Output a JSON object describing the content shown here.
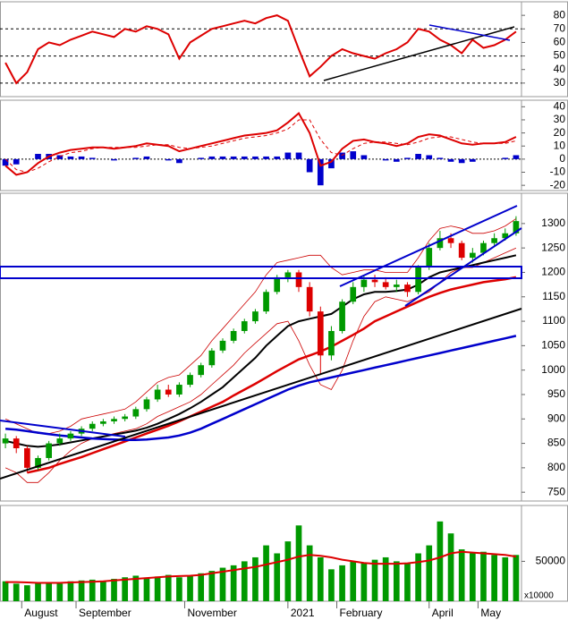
{
  "chart_data": [
    {
      "type": "line",
      "xlim": [
        0,
        48
      ],
      "ylim": [
        20,
        90
      ],
      "yticks": [
        30,
        40,
        50,
        60,
        70,
        80
      ],
      "reference_lines": [
        30,
        50,
        70
      ],
      "series": [
        {
          "color": "#dd0000",
          "values": [
            45,
            30,
            38,
            55,
            60,
            58,
            62,
            65,
            68,
            66,
            64,
            70,
            68,
            72,
            70,
            66,
            48,
            60,
            65,
            70,
            72,
            74,
            76,
            74,
            78,
            80,
            76,
            55,
            35,
            42,
            50,
            55,
            52,
            50,
            48,
            52,
            55,
            60,
            70,
            68,
            62,
            58,
            52,
            62,
            56,
            58,
            62,
            68
          ]
        }
      ]
    },
    {
      "type": "macd",
      "xlim": [
        0,
        48
      ],
      "ylim": [
        -24,
        45
      ],
      "yticks": [
        -20,
        -10,
        0,
        10,
        20,
        30,
        40
      ],
      "series": [
        {
          "color": "#dd0000",
          "values": [
            -5,
            -12,
            -10,
            -3,
            2,
            5,
            7,
            8,
            9,
            9,
            8,
            9,
            10,
            12,
            11,
            10,
            6,
            8,
            10,
            12,
            14,
            16,
            18,
            19,
            20,
            22,
            28,
            35,
            20,
            -5,
            -2,
            8,
            14,
            15,
            13,
            12,
            10,
            12,
            17,
            19,
            18,
            15,
            12,
            11,
            12,
            12,
            13,
            17
          ]
        },
        {
          "color": "#dd0000",
          "dashed": true,
          "values": [
            0,
            -8,
            -10,
            -7,
            -2,
            2,
            5,
            6,
            8,
            9,
            9,
            9,
            9,
            10,
            11,
            11,
            9,
            8,
            9,
            10,
            12,
            14,
            16,
            17,
            18,
            20,
            23,
            30,
            30,
            15,
            5,
            3,
            8,
            12,
            13,
            13,
            12,
            11,
            13,
            16,
            17,
            17,
            15,
            13,
            12,
            12,
            12,
            14
          ]
        }
      ],
      "histogram": {
        "color": "#0000cc",
        "values": [
          -5,
          -4,
          0,
          4,
          4,
          3,
          2,
          2,
          1,
          0,
          -1,
          0,
          1,
          2,
          0,
          -1,
          -3,
          0,
          1,
          2,
          2,
          2,
          2,
          2,
          2,
          2,
          5,
          5,
          -10,
          -20,
          -7,
          5,
          6,
          3,
          0,
          -1,
          -2,
          1,
          4,
          3,
          1,
          -2,
          -3,
          -2,
          0,
          0,
          1,
          3
        ]
      }
    },
    {
      "type": "candlestick",
      "xlim": [
        0,
        48
      ],
      "ylim": [
        732,
        1362
      ],
      "yticks": [
        750,
        800,
        850,
        900,
        950,
        1000,
        1050,
        1100,
        1150,
        1200,
        1250,
        1300
      ],
      "up_color": "#009900",
      "down_color": "#dd0000",
      "open": [
        850,
        860,
        840,
        800,
        820,
        850,
        860,
        870,
        880,
        890,
        895,
        900,
        905,
        920,
        940,
        960,
        950,
        970,
        990,
        1010,
        1040,
        1060,
        1080,
        1100,
        1120,
        1160,
        1190,
        1200,
        1170,
        1120,
        1030,
        1080,
        1140,
        1170,
        1185,
        1180,
        1170,
        1175,
        1160,
        1210,
        1250,
        1270,
        1260,
        1230,
        1240,
        1260,
        1270,
        1280
      ],
      "high": [
        870,
        865,
        845,
        825,
        855,
        870,
        875,
        885,
        895,
        900,
        905,
        910,
        925,
        945,
        970,
        970,
        975,
        995,
        1015,
        1045,
        1065,
        1085,
        1105,
        1125,
        1165,
        1195,
        1205,
        1205,
        1180,
        1130,
        1090,
        1145,
        1180,
        1195,
        1195,
        1190,
        1185,
        1180,
        1215,
        1260,
        1285,
        1280,
        1265,
        1250,
        1265,
        1280,
        1290,
        1315
      ],
      "low": [
        840,
        830,
        790,
        795,
        815,
        845,
        855,
        865,
        875,
        885,
        890,
        895,
        900,
        915,
        935,
        945,
        945,
        965,
        985,
        1005,
        1035,
        1055,
        1075,
        1095,
        1115,
        1155,
        1180,
        1160,
        1110,
        990,
        1020,
        1075,
        1135,
        1160,
        1170,
        1165,
        1160,
        1150,
        1155,
        1205,
        1245,
        1250,
        1225,
        1220,
        1235,
        1255,
        1265,
        1275
      ],
      "close": [
        860,
        840,
        800,
        820,
        850,
        860,
        870,
        880,
        890,
        895,
        900,
        905,
        920,
        940,
        960,
        950,
        970,
        990,
        1010,
        1040,
        1060,
        1080,
        1100,
        1120,
        1160,
        1190,
        1200,
        1170,
        1120,
        1030,
        1080,
        1140,
        1170,
        1185,
        1180,
        1170,
        1175,
        1160,
        1210,
        1250,
        1270,
        1260,
        1230,
        1240,
        1260,
        1270,
        1280,
        1305
      ],
      "series": [
        {
          "color": "#cc0000",
          "width": 0.8,
          "values": [
            900,
            890,
            880,
            870,
            870,
            875,
            885,
            900,
            905,
            910,
            915,
            920,
            935,
            955,
            975,
            985,
            990,
            1010,
            1030,
            1060,
            1085,
            1110,
            1135,
            1160,
            1195,
            1220,
            1225,
            1230,
            1235,
            1235,
            1210,
            1195,
            1200,
            1205,
            1205,
            1200,
            1200,
            1200,
            1230,
            1265,
            1290,
            1295,
            1290,
            1280,
            1280,
            1285,
            1295,
            1310
          ]
        },
        {
          "color": "#cc0000",
          "width": 0.8,
          "values": [
            800,
            790,
            770,
            770,
            790,
            815,
            835,
            850,
            860,
            865,
            870,
            875,
            880,
            890,
            905,
            915,
            925,
            935,
            950,
            970,
            990,
            1010,
            1035,
            1055,
            1075,
            1095,
            1100,
            1060,
            1010,
            970,
            960,
            1000,
            1060,
            1110,
            1140,
            1150,
            1145,
            1140,
            1150,
            1160,
            1180,
            1200,
            1210,
            1210,
            1220,
            1230,
            1240,
            1250
          ]
        },
        {
          "color": "#000000",
          "width": 2,
          "values": [
            855,
            850,
            845,
            843,
            845,
            848,
            852,
            856,
            860,
            864,
            868,
            872,
            876,
            882,
            890,
            900,
            910,
            922,
            935,
            950,
            965,
            985,
            1005,
            1025,
            1050,
            1070,
            1090,
            1100,
            1105,
            1110,
            1115,
            1130,
            1145,
            1155,
            1160,
            1160,
            1162,
            1165,
            1175,
            1190,
            1200,
            1205,
            1210,
            1215,
            1220,
            1225,
            1230,
            1235
          ]
        },
        {
          "color": "#dd0000",
          "width": 2.5,
          "values": [
            null,
            null,
            790,
            795,
            800,
            808,
            815,
            822,
            830,
            838,
            846,
            854,
            862,
            870,
            878,
            886,
            895,
            905,
            915,
            925,
            935,
            948,
            960,
            972,
            985,
            998,
            1010,
            1022,
            1030,
            1038,
            1048,
            1060,
            1072,
            1085,
            1100,
            1110,
            1120,
            1130,
            1140,
            1150,
            1158,
            1165,
            1170,
            1175,
            1180,
            1183,
            1186,
            1190
          ]
        },
        {
          "color": "#0000cc",
          "width": 2.5,
          "values": [
            880,
            878,
            875,
            872,
            869,
            866,
            864,
            862,
            860,
            859,
            858,
            857,
            857,
            858,
            860,
            862,
            866,
            872,
            880,
            890,
            900,
            910,
            920,
            930,
            940,
            950,
            960,
            968,
            975,
            980,
            985,
            990,
            995,
            1000,
            1005,
            1010,
            1015,
            1020,
            1025,
            1030,
            1035,
            1040,
            1045,
            1050,
            1055,
            1060,
            1065,
            1070
          ]
        }
      ]
    },
    {
      "type": "bar",
      "xlim": [
        0,
        48
      ],
      "ylim": [
        0,
        120000
      ],
      "yticks": [
        50000
      ],
      "unit_label": "x10000",
      "color": "#009900",
      "xticks": [
        {
          "value": 2,
          "label": "August"
        },
        {
          "value": 7,
          "label": "September"
        },
        {
          "value": 17,
          "label": "November"
        },
        {
          "value": 26.5,
          "label": "2021"
        },
        {
          "value": 31,
          "label": "February"
        },
        {
          "value": 39.5,
          "label": "April"
        },
        {
          "value": 44,
          "label": "May"
        }
      ],
      "values": [
        25000,
        22000,
        20000,
        23000,
        24000,
        22000,
        25000,
        26000,
        27000,
        25000,
        28000,
        30000,
        32000,
        29000,
        31000,
        33000,
        30000,
        32000,
        35000,
        38000,
        42000,
        45000,
        50000,
        55000,
        70000,
        60000,
        75000,
        95000,
        70000,
        55000,
        40000,
        45000,
        50000,
        48000,
        52000,
        55000,
        50000,
        48000,
        60000,
        70000,
        100000,
        85000,
        65000,
        60000,
        62000,
        58000,
        55000,
        58000
      ],
      "series": [
        {
          "color": "#dd0000",
          "values": [
            24000,
            24000,
            23500,
            23000,
            23000,
            23000,
            23500,
            24000,
            24500,
            25000,
            26000,
            27000,
            28000,
            29000,
            30000,
            31000,
            31500,
            32000,
            33000,
            35000,
            37000,
            39000,
            41000,
            43000,
            46000,
            49000,
            52000,
            56000,
            58000,
            57000,
            55000,
            52000,
            50000,
            48000,
            47000,
            47000,
            47000,
            47500,
            49000,
            51000,
            55000,
            60000,
            62000,
            61000,
            60000,
            59000,
            58000,
            56000
          ]
        }
      ]
    }
  ]
}
